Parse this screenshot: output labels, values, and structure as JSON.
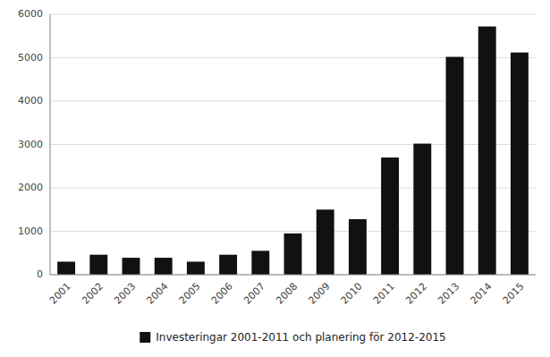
{
  "chart_data": {
    "type": "bar",
    "categories": [
      "2001",
      "2002",
      "2003",
      "2004",
      "2005",
      "2006",
      "2007",
      "2008",
      "2009",
      "2010",
      "2011",
      "2012",
      "2013",
      "2014",
      "2015"
    ],
    "series": [
      {
        "name": "Investeringar 2001-2011 och planering för 2012-2015",
        "color": "#111111",
        "values": [
          300,
          460,
          390,
          390,
          300,
          460,
          550,
          950,
          1500,
          1280,
          2700,
          3020,
          5020,
          5720,
          5120
        ]
      }
    ],
    "ylim": [
      0,
      6000
    ],
    "yticks": [
      0,
      1000,
      2000,
      3000,
      4000,
      5000,
      6000
    ],
    "grid": true,
    "legend": "bottom"
  }
}
